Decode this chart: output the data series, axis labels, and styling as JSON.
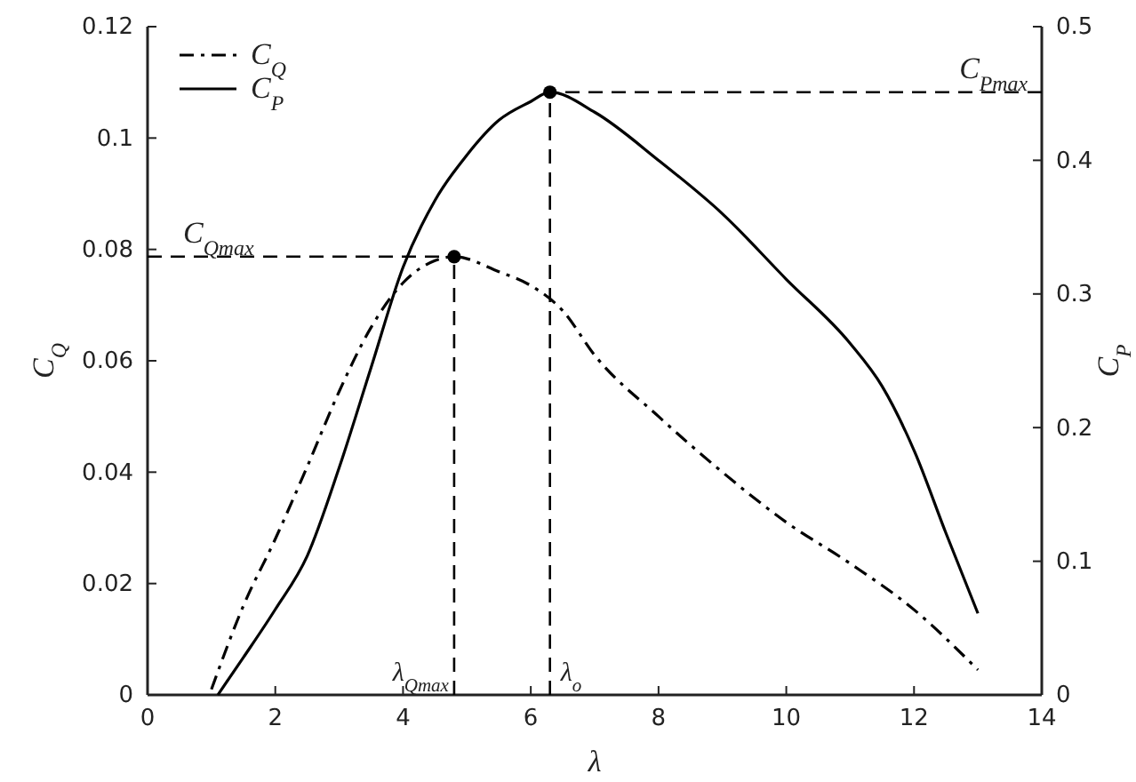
{
  "chart_data": {
    "type": "line",
    "xlabel": "λ",
    "ylabel": "C$_{Q}$",
    "y2label": "C$_{P}$",
    "xlim": [
      0,
      14
    ],
    "xticks": [
      0,
      2,
      4,
      6,
      8,
      10,
      12,
      14
    ],
    "ylim": [
      0,
      0.12
    ],
    "yticks": [
      0,
      0.02,
      0.04,
      0.06,
      0.08,
      0.1,
      0.12
    ],
    "y2lim": [
      0,
      0.5
    ],
    "y2ticks": [
      0,
      0.1,
      0.2,
      0.3,
      0.4,
      0.5
    ],
    "legend": "top left",
    "grid": false,
    "marker": "none",
    "series": [
      {
        "name": "C$_{Q}$",
        "color": "#000000",
        "line_style": "dashdot",
        "x": [
          1,
          1.5,
          2,
          2.5,
          3,
          3.5,
          4,
          4.5,
          4.8,
          5.5,
          6,
          6.5,
          7,
          8,
          9,
          10,
          11,
          12,
          13
        ],
        "values": [
          0.001,
          0.016,
          0.028,
          0.041,
          0.0545,
          0.066,
          0.074,
          0.078,
          0.0787,
          0.076,
          0.0735,
          0.069,
          0.061,
          0.05,
          0.04,
          0.031,
          0.0236,
          0.0153,
          0.0045
        ]
      },
      {
        "name": "C$_{P}$",
        "color": "#000000",
        "line_style": "solid",
        "axis": "y2",
        "x": [
          1.1,
          1.5,
          2,
          2.5,
          3,
          3.5,
          4,
          4.5,
          5,
          5.5,
          6,
          6.3,
          7,
          8,
          9,
          10,
          11,
          11.5,
          12,
          12.5,
          13
        ],
        "values": [
          0,
          0.028,
          0.064,
          0.104,
          0.17,
          0.245,
          0.32,
          0.37,
          0.404,
          0.43,
          0.444,
          0.451,
          0.436,
          0.4,
          0.36,
          0.311,
          0.263,
          0.231,
          0.183,
          0.121,
          0.061
        ]
      },
      {
        "type": "scatter",
        "color": "#000000",
        "marker": "circle",
        "x": [
          4.8
        ],
        "values": [
          0.0787
        ]
      },
      {
        "type": "scatter",
        "color": "#000000",
        "marker": "circle",
        "axis": "y2",
        "x": [
          6.3
        ],
        "values": [
          0.451
        ]
      }
    ],
    "ref_lines": [
      {
        "axis": "x",
        "value": 4.8,
        "label": "λ$_{Qmax}$",
        "line_style": "dashed"
      },
      {
        "axis": "x",
        "value": 6.3,
        "label": "λ$_{o}$",
        "line_style": "dashed"
      },
      {
        "axis": "y",
        "value": 0.0787,
        "label": "C$_{Qmax}$",
        "line_style": "dashed"
      },
      {
        "axis": "y2",
        "value": 0.451,
        "label": "C$_{Pmax}$",
        "line_style": "dashed"
      }
    ]
  }
}
